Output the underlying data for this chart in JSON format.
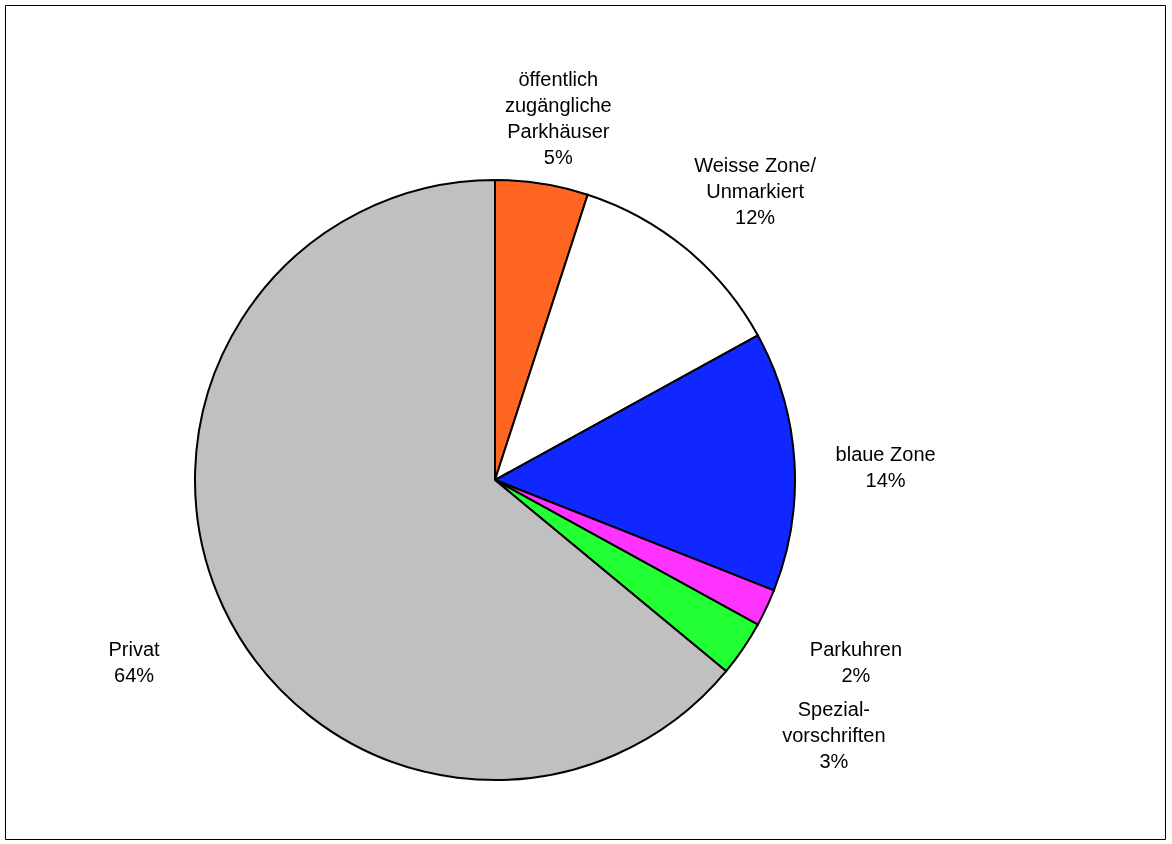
{
  "chart_data": {
    "type": "pie",
    "categories": [
      "öffentlich\nzugängliche\nParkhäuser",
      "Weisse Zone/\nUnmarkiert",
      "blaue Zone",
      "Parkuhren",
      "Spezial-\nvorschriften",
      "Privat"
    ],
    "values": [
      5,
      12,
      14,
      2,
      3,
      64
    ],
    "value_labels": [
      "5%",
      "12%",
      "14%",
      "2%",
      "3%",
      "64%"
    ],
    "colors": [
      "#ff6622",
      "#ffffff",
      "#1028ff",
      "#ff33ff",
      "#22ff33",
      "#c0c0c0"
    ],
    "legend": false
  }
}
